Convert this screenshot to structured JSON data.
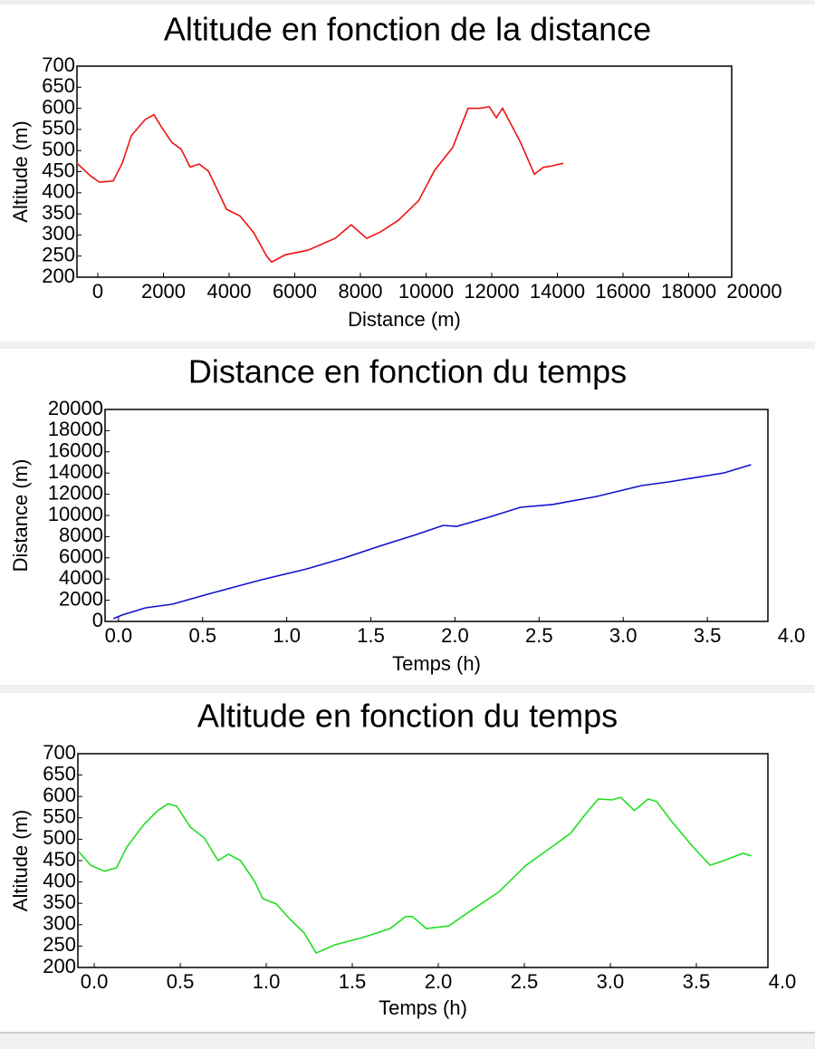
{
  "chart_data": [
    {
      "type": "line",
      "title": "Altitude en fonction de la distance",
      "xlabel": "Distance (m)",
      "ylabel": "Altitude (m)",
      "color": "#ee1111",
      "xlim": [
        -634,
        19310
      ],
      "ylim": [
        200,
        700
      ],
      "xticks": [
        0,
        2000,
        4000,
        6000,
        8000,
        10000,
        12000,
        14000,
        16000,
        18000,
        20000
      ],
      "yticks": [
        200,
        250,
        300,
        350,
        400,
        450,
        500,
        550,
        600,
        650,
        700
      ],
      "x": [
        -634,
        -220,
        55,
        470,
        745,
        1020,
        1435,
        1710,
        1930,
        2260,
        2540,
        2810,
        3090,
        3370,
        3640,
        3920,
        4330,
        4745,
        5160,
        5300,
        5710,
        6400,
        7230,
        7720,
        8190,
        8610,
        9160,
        9770,
        10260,
        10810,
        11280,
        11640,
        11920,
        12140,
        12330,
        12520,
        12880,
        13300,
        13570,
        13850,
        14180
      ],
      "values": [
        470,
        440,
        425,
        428,
        470,
        535,
        573,
        585,
        557,
        519,
        503,
        461,
        468,
        451,
        408,
        361,
        345,
        306,
        248,
        236,
        253,
        264,
        292,
        324,
        292,
        307,
        335,
        381,
        453,
        507,
        600,
        600,
        604,
        578,
        600,
        572,
        519,
        444,
        460,
        464,
        470
      ]
    },
    {
      "type": "line",
      "title": "Distance en fonction du temps",
      "xlabel": "Temps (h)",
      "ylabel": "Distance (m)",
      "color": "#1111cc",
      "xlim": [
        -0.08,
        3.86
      ],
      "ylim": [
        0,
        20000
      ],
      "xticks": [
        {
          "value": 0,
          "label": "0.0"
        },
        0.5,
        {
          "value": 1,
          "label": "1.0"
        },
        1.5,
        {
          "value": 2,
          "label": "2.0"
        },
        2.5,
        {
          "value": 3,
          "label": "3.0"
        },
        3.5,
        {
          "value": 4,
          "label": "4.0"
        }
      ],
      "yticks": [
        0,
        2000,
        4000,
        6000,
        8000,
        10000,
        12000,
        14000,
        16000,
        18000,
        20000
      ],
      "x": [
        -0.03,
        0.02,
        0.16,
        0.32,
        0.53,
        0.85,
        1.12,
        1.34,
        1.55,
        1.77,
        1.93,
        2.01,
        2.2,
        2.39,
        2.58,
        2.84,
        3.11,
        3.27,
        3.6,
        3.76
      ],
      "values": [
        260,
        600,
        1280,
        1620,
        2560,
        3930,
        4960,
        5980,
        7090,
        8200,
        9060,
        8970,
        9830,
        10770,
        11030,
        11790,
        12820,
        13160,
        14020,
        14790
      ]
    },
    {
      "type": "line",
      "title": "Altitude en fonction du temps",
      "xlabel": "Temps (h)",
      "ylabel": "Altitude (m)",
      "color": "#22dd22",
      "xlim": [
        -0.095,
        3.916
      ],
      "ylim": [
        200,
        700
      ],
      "xticks": [
        {
          "value": 0,
          "label": "0.0"
        },
        0.5,
        {
          "value": 1,
          "label": "1.0"
        },
        1.5,
        {
          "value": 2,
          "label": "2.0"
        },
        2.5,
        {
          "value": 3,
          "label": "3.0"
        },
        3.5,
        {
          "value": 4,
          "label": "4.0"
        }
      ],
      "yticks": [
        200,
        250,
        300,
        350,
        400,
        450,
        500,
        550,
        600,
        650,
        700
      ],
      "x": [
        -0.09,
        -0.02,
        0.06,
        0.13,
        0.19,
        0.29,
        0.37,
        0.43,
        0.48,
        0.56,
        0.64,
        0.72,
        0.78,
        0.85,
        0.93,
        0.98,
        1.06,
        1.14,
        1.22,
        1.29,
        1.4,
        1.56,
        1.72,
        1.81,
        1.85,
        1.93,
        2.06,
        2.19,
        2.35,
        2.51,
        2.66,
        2.77,
        2.85,
        2.93,
        3.01,
        3.06,
        3.14,
        3.22,
        3.27,
        3.35,
        3.48,
        3.58,
        3.66,
        3.77,
        3.82
      ],
      "values": [
        471,
        439,
        425,
        433,
        482,
        535,
        567,
        583,
        577,
        528,
        503,
        450,
        465,
        450,
        403,
        361,
        348,
        312,
        281,
        234,
        253,
        270,
        291,
        319,
        319,
        291,
        297,
        333,
        376,
        439,
        482,
        514,
        556,
        594,
        592,
        598,
        567,
        594,
        588,
        545,
        482,
        439,
        450,
        467,
        461
      ]
    }
  ]
}
